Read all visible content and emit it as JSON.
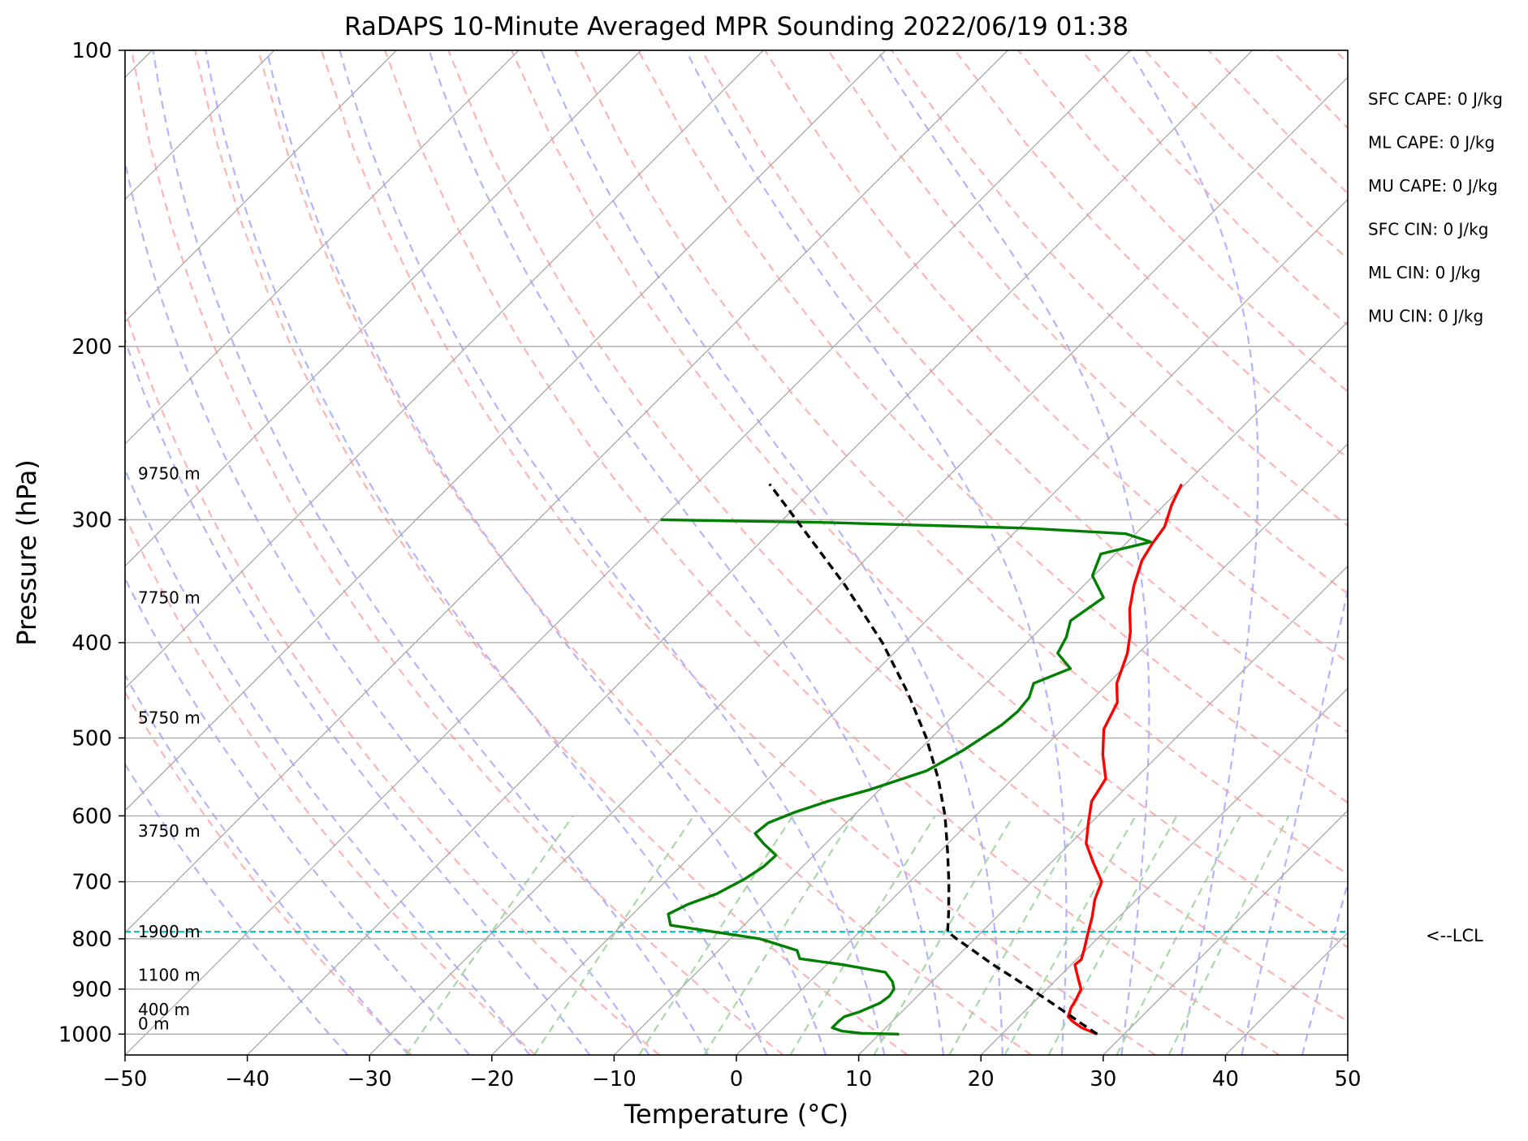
{
  "chart_data": {
    "type": "line",
    "title": "RaDAPS 10-Minute Averaged MPR Sounding 2022/06/19 01:38",
    "xlabel": "Temperature (°C)",
    "ylabel": "Pressure (hPa)",
    "xlim": [
      -50,
      50
    ],
    "ylim": [
      1050,
      100
    ],
    "y_scale": "log",
    "x_ticks": [
      "−50",
      "−40",
      "−30",
      "−20",
      "−10",
      "0",
      "10",
      "20",
      "30",
      "40",
      "50"
    ],
    "y_ticks": [
      "100",
      "200",
      "300",
      "400",
      "500",
      "600",
      "700",
      "800",
      "900",
      "1000"
    ],
    "grid": true,
    "colors": {
      "temperature": "#ff0000",
      "dewpoint": "#008000",
      "parcel": "#000000",
      "lcl": "#00bfbf",
      "dry_adiabat": "#ffb3b3",
      "moist_adiabat": "#b3b3ff",
      "mixing_ratio": "#a8d8a8",
      "isotherm": "#a9a9a9"
    },
    "series": [
      {
        "key": "temperature",
        "points": [
          [
            1000,
            27.8
          ],
          [
            985,
            26.0
          ],
          [
            970,
            24.7
          ],
          [
            960,
            24.0
          ],
          [
            940,
            23.5
          ],
          [
            920,
            23.2
          ],
          [
            900,
            22.8
          ],
          [
            880,
            21.8
          ],
          [
            860,
            20.8
          ],
          [
            850,
            20.3
          ],
          [
            840,
            20.4
          ],
          [
            820,
            19.8
          ],
          [
            790,
            18.8
          ],
          [
            760,
            17.8
          ],
          [
            730,
            16.6
          ],
          [
            700,
            15.7
          ],
          [
            670,
            13.5
          ],
          [
            640,
            11.3
          ],
          [
            610,
            9.8
          ],
          [
            580,
            8.3
          ],
          [
            550,
            7.6
          ],
          [
            520,
            5.4
          ],
          [
            490,
            3.4
          ],
          [
            460,
            2.3
          ],
          [
            440,
            0.7
          ],
          [
            410,
            -0.9
          ],
          [
            390,
            -2.4
          ],
          [
            370,
            -4.3
          ],
          [
            350,
            -5.9
          ],
          [
            330,
            -7.3
          ],
          [
            318,
            -7.8
          ],
          [
            305,
            -8.2
          ],
          [
            290,
            -9.4
          ],
          [
            276,
            -10.3
          ]
        ]
      },
      {
        "key": "dewpoint",
        "points": [
          [
            1000,
            11.6
          ],
          [
            998,
            8.5
          ],
          [
            993,
            6.7
          ],
          [
            985,
            5.6
          ],
          [
            970,
            5.6
          ],
          [
            960,
            5.7
          ],
          [
            950,
            6.5
          ],
          [
            930,
            7.5
          ],
          [
            915,
            7.7
          ],
          [
            900,
            7.5
          ],
          [
            885,
            6.8
          ],
          [
            865,
            5.4
          ],
          [
            850,
            1.3
          ],
          [
            838,
            -2.7
          ],
          [
            822,
            -3.6
          ],
          [
            800,
            -7.6
          ],
          [
            775,
            -16.0
          ],
          [
            755,
            -17.1
          ],
          [
            738,
            -16.3
          ],
          [
            720,
            -14.8
          ],
          [
            695,
            -13.7
          ],
          [
            676,
            -13.2
          ],
          [
            658,
            -13.1
          ],
          [
            640,
            -15.1
          ],
          [
            625,
            -16.6
          ],
          [
            610,
            -16.4
          ],
          [
            595,
            -15.1
          ],
          [
            580,
            -13.3
          ],
          [
            565,
            -10.9
          ],
          [
            540,
            -7.7
          ],
          [
            515,
            -6.4
          ],
          [
            485,
            -5.3
          ],
          [
            470,
            -5.1
          ],
          [
            455,
            -5.3
          ],
          [
            440,
            -6.1
          ],
          [
            425,
            -4.3
          ],
          [
            410,
            -6.6
          ],
          [
            395,
            -7.2
          ],
          [
            380,
            -8.2
          ],
          [
            360,
            -7.4
          ],
          [
            342,
            -10.1
          ],
          [
            325,
            -11.2
          ],
          [
            316,
            -8.1
          ],
          [
            310,
            -10.8
          ],
          [
            306,
            -19.5
          ],
          [
            302,
            -36.0
          ],
          [
            300,
            -50.0
          ]
        ]
      },
      {
        "key": "parcel",
        "points": [
          [
            1000,
            27.8
          ],
          [
            975,
            25.6
          ],
          [
            950,
            23.4
          ],
          [
            925,
            21.1
          ],
          [
            900,
            18.7
          ],
          [
            875,
            16.2
          ],
          [
            850,
            13.6
          ],
          [
            825,
            11.1
          ],
          [
            800,
            8.5
          ],
          [
            787,
            7.2
          ],
          [
            750,
            5.6
          ],
          [
            700,
            3.2
          ],
          [
            650,
            0.5
          ],
          [
            600,
            -2.5
          ],
          [
            550,
            -6.1
          ],
          [
            500,
            -10.4
          ],
          [
            450,
            -15.6
          ],
          [
            400,
            -21.8
          ],
          [
            350,
            -29.5
          ],
          [
            300,
            -38.9
          ],
          [
            276,
            -44.0
          ]
        ]
      }
    ],
    "lcl_pressure": 787,
    "lcl_label": "<--LCL",
    "height_labels": [
      {
        "text": "9750 m",
        "p": 276
      },
      {
        "text": "7750 m",
        "p": 369
      },
      {
        "text": "5750 m",
        "p": 489
      },
      {
        "text": "3750 m",
        "p": 637
      },
      {
        "text": "1900 m",
        "p": 806
      },
      {
        "text": "1100 m",
        "p": 893
      },
      {
        "text": "400 m",
        "p": 968
      },
      {
        "text": "0 m",
        "p": 1000
      }
    ],
    "indices": [
      "SFC CAPE: 0 J/kg",
      "ML CAPE: 0 J/kg",
      "MU CAPE: 0 J/kg",
      "SFC CIN: 0 J/kg",
      "ML CIN: 0 J/kg",
      "MU CIN: 0 J/kg"
    ]
  }
}
